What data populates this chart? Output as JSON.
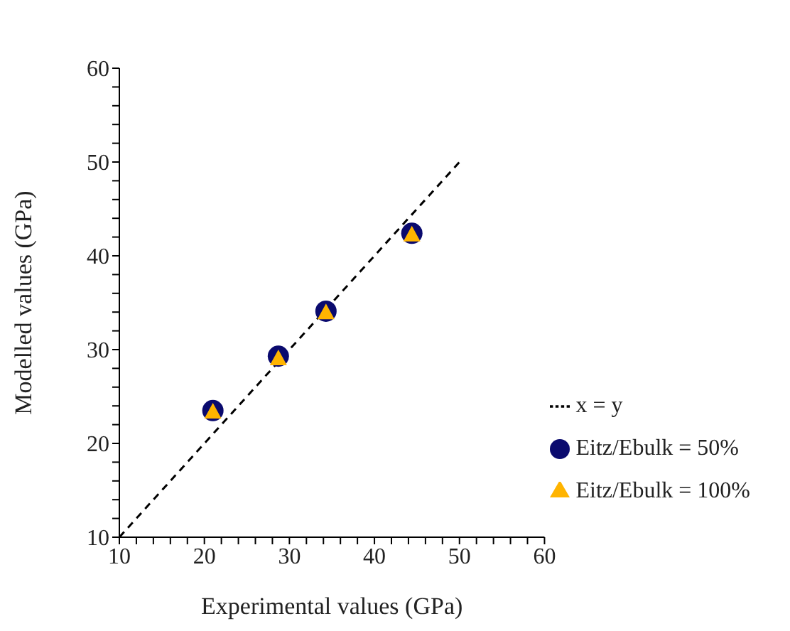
{
  "chart_data": {
    "type": "scatter",
    "xlabel": "Experimental values (GPa)",
    "ylabel": "Modelled values (GPa)",
    "xlim": [
      10,
      60
    ],
    "ylim": [
      10,
      60
    ],
    "xticks": [
      10,
      {
        "value": 12,
        "label": null
      },
      {
        "value": 14,
        "label": null
      },
      {
        "value": 16,
        "label": null
      },
      {
        "value": 18,
        "label": null
      },
      20,
      {
        "value": 22,
        "label": null
      },
      {
        "value": 24,
        "label": null
      },
      {
        "value": 26,
        "label": null
      },
      {
        "value": 28,
        "label": null
      },
      30,
      {
        "value": 32,
        "label": null
      },
      {
        "value": 34,
        "label": null
      },
      {
        "value": 36,
        "label": null
      },
      {
        "value": 38,
        "label": null
      },
      40,
      {
        "value": 42,
        "label": null
      },
      {
        "value": 44,
        "label": null
      },
      {
        "value": 46,
        "label": null
      },
      {
        "value": 48,
        "label": null
      },
      50,
      {
        "value": 52,
        "label": null
      },
      {
        "value": 54,
        "label": null
      },
      {
        "value": 56,
        "label": null
      },
      {
        "value": 58,
        "label": null
      },
      60
    ],
    "yticks": [
      10,
      {
        "value": 12,
        "label": null
      },
      {
        "value": 14,
        "label": null
      },
      {
        "value": 16,
        "label": null
      },
      {
        "value": 18,
        "label": null
      },
      20,
      {
        "value": 22,
        "label": null
      },
      {
        "value": 24,
        "label": null
      },
      {
        "value": 26,
        "label": null
      },
      {
        "value": 28,
        "label": null
      },
      30,
      {
        "value": 32,
        "label": null
      },
      {
        "value": 34,
        "label": null
      },
      {
        "value": 36,
        "label": null
      },
      {
        "value": 38,
        "label": null
      },
      40,
      {
        "value": 42,
        "label": null
      },
      {
        "value": 44,
        "label": null
      },
      {
        "value": 46,
        "label": null
      },
      {
        "value": 48,
        "label": null
      },
      50,
      {
        "value": 52,
        "label": null
      },
      {
        "value": 54,
        "label": null
      },
      {
        "value": 56,
        "label": null
      },
      {
        "value": 58,
        "label": null
      },
      60
    ],
    "x": [
      21,
      28.7,
      34.3,
      44.4
    ],
    "series": [
      {
        "name": "x = y",
        "type": "line",
        "color": "#000000",
        "x": [
          10,
          50
        ],
        "values": [
          10,
          50
        ],
        "line_style": "dashed",
        "marker": "none"
      },
      {
        "name": "Eitz/Ebulk = 50%",
        "color": "#0a0a6e",
        "values": [
          23.5,
          29.3,
          34.1,
          42.4
        ],
        "marker": "circle"
      },
      {
        "name": "Eitz/Ebulk = 100%",
        "color": "#ffb400",
        "values": [
          23.4,
          29.1,
          34.0,
          42.3
        ],
        "marker": "triangle"
      }
    ],
    "legend": "bottom right",
    "grid": false
  }
}
